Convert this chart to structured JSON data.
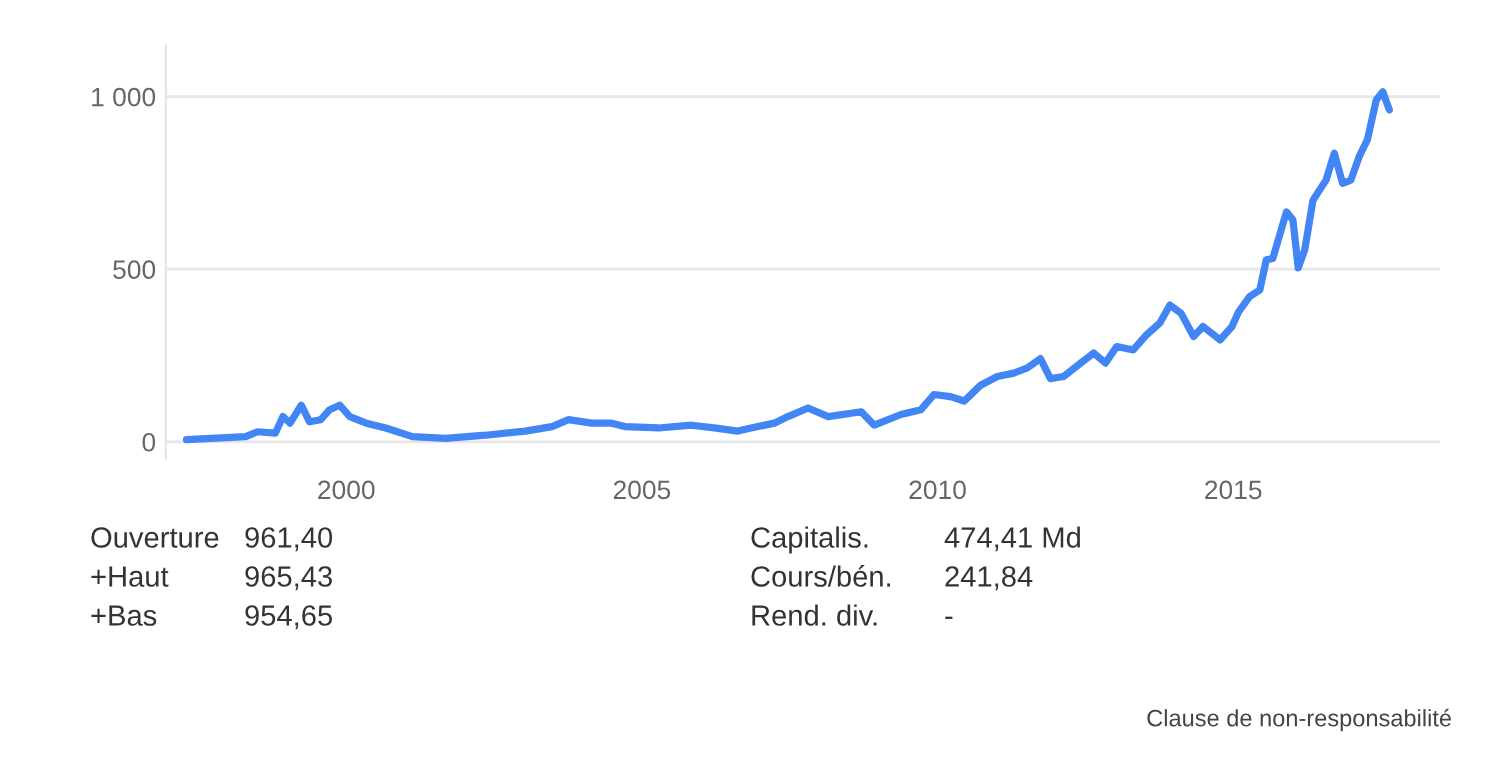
{
  "chart_data": {
    "type": "line",
    "x": [
      1997.3,
      1998.3,
      1998.5,
      1998.8,
      1998.93,
      1999.05,
      1999.24,
      1999.38,
      1999.57,
      1999.72,
      1999.89,
      2000.06,
      2000.34,
      2000.67,
      2001.12,
      2001.68,
      2002.36,
      2003.03,
      2003.48,
      2003.76,
      2004.15,
      2004.49,
      2004.71,
      2005.28,
      2005.84,
      2006.29,
      2006.62,
      2006.96,
      2007.24,
      2007.47,
      2007.81,
      2008.15,
      2008.71,
      2008.93,
      2009.38,
      2009.72,
      2009.94,
      2010.22,
      2010.45,
      2010.73,
      2011.01,
      2011.29,
      2011.52,
      2011.74,
      2011.91,
      2012.13,
      2012.42,
      2012.64,
      2012.84,
      2013.03,
      2013.31,
      2013.54,
      2013.76,
      2013.93,
      2014.12,
      2014.33,
      2014.49,
      2014.78,
      2014.98,
      2015.09,
      2015.28,
      2015.45,
      2015.56,
      2015.67,
      2015.9,
      2016.01,
      2016.1,
      2016.21,
      2016.35,
      2016.57,
      2016.71,
      2016.85,
      2016.99,
      2017.13,
      2017.27,
      2017.42,
      2017.53,
      2017.64
    ],
    "series": [
      {
        "color": "#4285f4",
        "values": [
          6,
          15,
          29,
          25,
          73,
          54,
          106,
          58,
          64,
          93,
          106,
          73,
          54,
          40,
          15,
          10,
          19,
          31,
          44,
          64,
          54,
          54,
          44,
          40,
          48,
          39,
          31,
          44,
          54,
          73,
          98,
          73,
          87,
          48,
          79,
          93,
          137,
          131,
          118,
          164,
          189,
          199,
          214,
          241,
          183,
          189,
          228,
          257,
          228,
          276,
          266,
          311,
          344,
          396,
          372,
          305,
          334,
          295,
          334,
          376,
          421,
          440,
          527,
          531,
          666,
          643,
          504,
          556,
          700,
          758,
          836,
          749,
          758,
          826,
          875,
          990,
          1014,
          962
        ]
      }
    ],
    "xlim": [
      1996.95,
      2018.5
    ],
    "xticks": [
      2000,
      2005,
      2010,
      2015
    ],
    "ylim": [
      -50,
      1150
    ],
    "yticks": [
      0,
      500,
      {
        "value": 1000,
        "label": "1 000"
      }
    ],
    "grid": "y",
    "legend": false,
    "annotations": [
      "Ouverture",
      "961,40",
      "+Haut",
      "965,43",
      "+Bas",
      "954,65",
      "Capitalis.",
      "474,41 Md",
      "Cours/bén.",
      "241,84",
      "Rend. div.",
      "-",
      "Clause de non-responsabilité"
    ]
  }
}
